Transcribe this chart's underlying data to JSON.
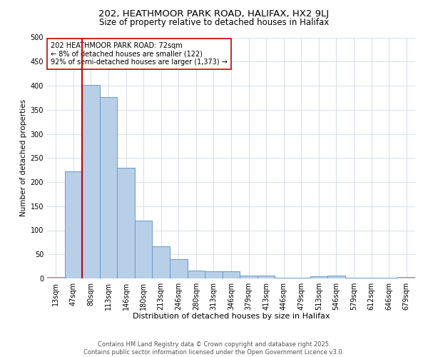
{
  "title1": "202, HEATHMOOR PARK ROAD, HALIFAX, HX2 9LJ",
  "title2": "Size of property relative to detached houses in Halifax",
  "xlabel": "Distribution of detached houses by size in Halifax",
  "ylabel": "Number of detached properties",
  "bar_labels": [
    "13sqm",
    "47sqm",
    "80sqm",
    "113sqm",
    "146sqm",
    "180sqm",
    "213sqm",
    "246sqm",
    "280sqm",
    "313sqm",
    "346sqm",
    "379sqm",
    "413sqm",
    "446sqm",
    "479sqm",
    "513sqm",
    "546sqm",
    "579sqm",
    "612sqm",
    "646sqm",
    "679sqm"
  ],
  "bar_values": [
    3,
    222,
    401,
    376,
    230,
    120,
    67,
    40,
    17,
    15,
    15,
    6,
    6,
    1,
    1,
    5,
    6,
    1,
    1,
    1,
    3
  ],
  "bar_color": "#b8cfe8",
  "bar_edge_color": "#6699cc",
  "vline_x": 1.5,
  "vline_color": "#cc0000",
  "annotation_text": "202 HEATHMOOR PARK ROAD: 72sqm\n← 8% of detached houses are smaller (122)\n92% of semi-detached houses are larger (1,373) →",
  "annotation_box_color": "#ffffff",
  "annotation_box_edge": "#cc0000",
  "ylim": [
    0,
    500
  ],
  "yticks": [
    0,
    50,
    100,
    150,
    200,
    250,
    300,
    350,
    400,
    450,
    500
  ],
  "bg_color": "#ffffff",
  "grid_color": "#d0d8e8",
  "footer_text": "Contains HM Land Registry data © Crown copyright and database right 2025.\nContains public sector information licensed under the Open Government Licence v3.0.",
  "title1_fontsize": 9.5,
  "title2_fontsize": 8.5,
  "xlabel_fontsize": 8,
  "ylabel_fontsize": 7.5,
  "tick_fontsize": 7,
  "annotation_fontsize": 7,
  "footer_fontsize": 6
}
